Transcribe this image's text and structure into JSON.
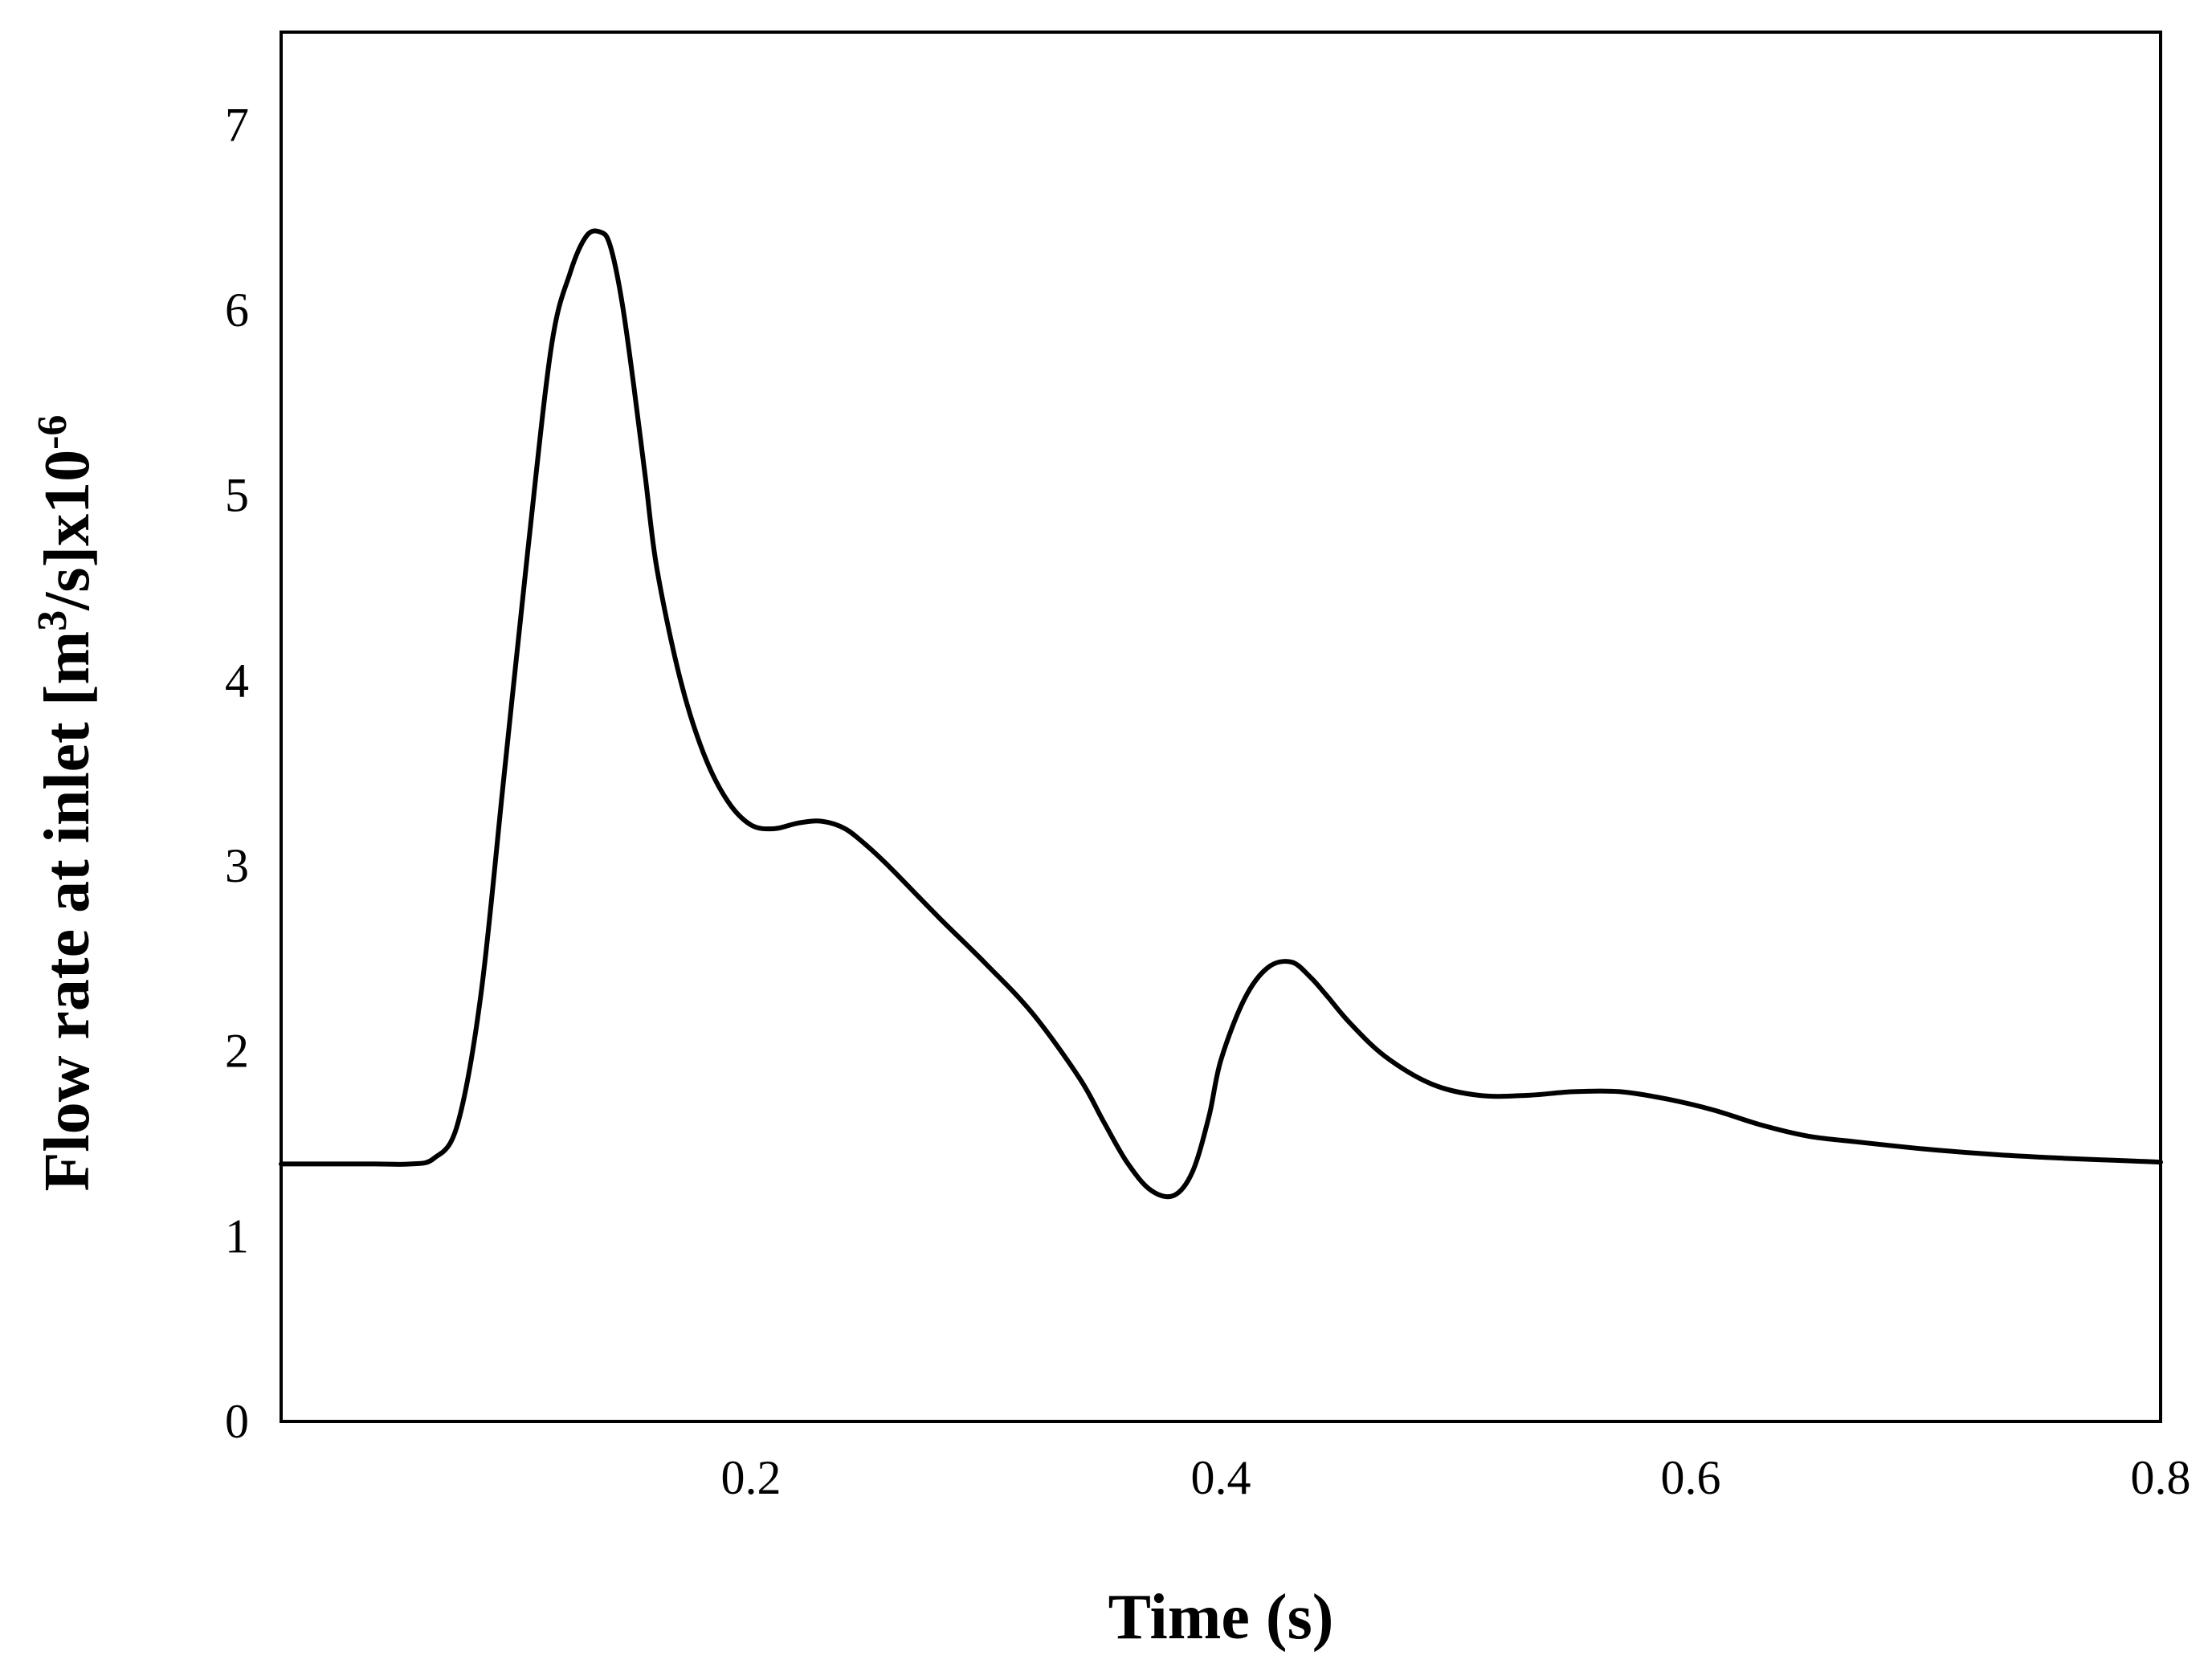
{
  "chart_data": {
    "type": "line",
    "title": "",
    "xlabel": "Time (s)",
    "ylabel": {
      "main": "Flow rate at inlet [m",
      "sup1": "3",
      "mid": "/s]x10",
      "sup2": "-6"
    },
    "xlim": [
      0,
      0.8
    ],
    "ylim": [
      0,
      7.5
    ],
    "x_ticks": [
      {
        "value": 0.2,
        "label": "0.2"
      },
      {
        "value": 0.4,
        "label": "0.4"
      },
      {
        "value": 0.6,
        "label": "0.6"
      },
      {
        "value": 0.8,
        "label": "0.8"
      }
    ],
    "y_ticks": [
      {
        "value": 0,
        "label": "0"
      },
      {
        "value": 1,
        "label": "1"
      },
      {
        "value": 2,
        "label": "2"
      },
      {
        "value": 3,
        "label": "3"
      },
      {
        "value": 4,
        "label": "4"
      },
      {
        "value": 5,
        "label": "5"
      },
      {
        "value": 6,
        "label": "6"
      },
      {
        "value": 7,
        "label": "7"
      }
    ],
    "grid": false,
    "line_color": "#000000",
    "series": [
      {
        "x": [
          0.0,
          0.02,
          0.04,
          0.055,
          0.065,
          0.075,
          0.085,
          0.095,
          0.105,
          0.115,
          0.123,
          0.13,
          0.136,
          0.14,
          0.145,
          0.15,
          0.155,
          0.16,
          0.17,
          0.18,
          0.19,
          0.2,
          0.21,
          0.22,
          0.23,
          0.24,
          0.25,
          0.26,
          0.28,
          0.3,
          0.32,
          0.34,
          0.35,
          0.36,
          0.37,
          0.38,
          0.388,
          0.395,
          0.4,
          0.41,
          0.42,
          0.43,
          0.438,
          0.445,
          0.455,
          0.47,
          0.49,
          0.51,
          0.53,
          0.55,
          0.57,
          0.59,
          0.61,
          0.63,
          0.65,
          0.67,
          0.7,
          0.73,
          0.76,
          0.78,
          0.8
        ],
        "y": [
          1.39,
          1.39,
          1.39,
          1.39,
          1.42,
          1.6,
          2.3,
          3.5,
          4.7,
          5.8,
          6.2,
          6.4,
          6.42,
          6.35,
          6.05,
          5.6,
          5.1,
          4.6,
          4.0,
          3.6,
          3.35,
          3.22,
          3.2,
          3.23,
          3.24,
          3.2,
          3.1,
          2.98,
          2.72,
          2.47,
          2.2,
          1.85,
          1.62,
          1.4,
          1.25,
          1.22,
          1.35,
          1.65,
          1.95,
          2.28,
          2.45,
          2.48,
          2.4,
          2.3,
          2.15,
          1.97,
          1.82,
          1.76,
          1.76,
          1.78,
          1.78,
          1.74,
          1.68,
          1.6,
          1.54,
          1.51,
          1.47,
          1.44,
          1.42,
          1.41,
          1.4
        ]
      }
    ]
  }
}
